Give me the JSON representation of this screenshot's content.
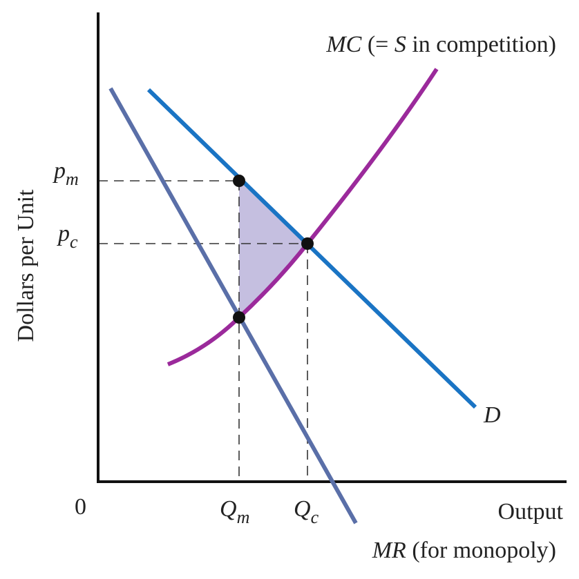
{
  "y_axis_label": "Dollars per Unit",
  "x_axis_label": "Output",
  "origin_label": "0",
  "price_labels": [
    {
      "main": "p",
      "sub": "m"
    },
    {
      "main": "p",
      "sub": "c"
    }
  ],
  "quantity_labels": [
    {
      "main": "Q",
      "sub": "m"
    },
    {
      "main": "Q",
      "sub": "c"
    }
  ],
  "curves": {
    "mc": {
      "parts": [
        "MC",
        " (= ",
        "S",
        " in competition)"
      ]
    },
    "demand": {
      "label": "D"
    },
    "mr": {
      "parts": [
        "MR",
        " (for monopoly)"
      ]
    }
  }
}
